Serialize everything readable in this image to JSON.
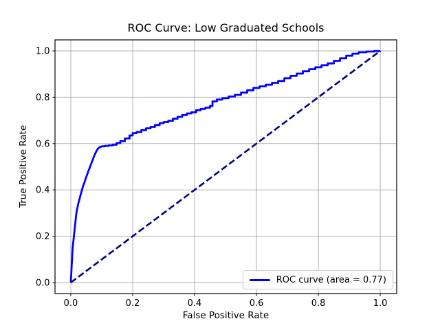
{
  "chart_data": {
    "type": "line",
    "title": "ROC Curve: Low Graduated Schools",
    "xlabel": "False Positive Rate",
    "ylabel": "True Positive Rate",
    "xlim": [
      -0.051,
      1.053
    ],
    "ylim": [
      -0.0475,
      1.0475
    ],
    "x_ticks": [
      0.0,
      0.2,
      0.4,
      0.6,
      0.8,
      1.0
    ],
    "y_ticks": [
      0.0,
      0.2,
      0.4,
      0.6,
      0.8,
      1.0
    ],
    "x_tick_labels": [
      "0.0",
      "0.2",
      "0.4",
      "0.6",
      "0.8",
      "1.0"
    ],
    "y_tick_labels": [
      "0.0",
      "0.2",
      "0.4",
      "0.6",
      "0.8",
      "1.0"
    ],
    "grid": true,
    "auc": 0.77,
    "legend": {
      "position": "lower right",
      "entries": [
        {
          "label": "ROC curve (area = 0.77)",
          "color": "#0000ff"
        }
      ]
    },
    "series": [
      {
        "name": "ROC curve (area = 0.77)",
        "id": "roc-curve-line",
        "color": "#0000ff",
        "linewidth": 2.8,
        "linestyle": "solid",
        "stepped": true,
        "points": [
          [
            0.0,
            0.0
          ],
          [
            0.001,
            0.025
          ],
          [
            0.002,
            0.05
          ],
          [
            0.003,
            0.075
          ],
          [
            0.004,
            0.1
          ],
          [
            0.005,
            0.125
          ],
          [
            0.006,
            0.15
          ],
          [
            0.008,
            0.175
          ],
          [
            0.01,
            0.2
          ],
          [
            0.012,
            0.225
          ],
          [
            0.014,
            0.25
          ],
          [
            0.016,
            0.275
          ],
          [
            0.018,
            0.3
          ],
          [
            0.021,
            0.32
          ],
          [
            0.024,
            0.34
          ],
          [
            0.028,
            0.36
          ],
          [
            0.032,
            0.38
          ],
          [
            0.036,
            0.4
          ],
          [
            0.04,
            0.418
          ],
          [
            0.044,
            0.432
          ],
          [
            0.048,
            0.448
          ],
          [
            0.052,
            0.463
          ],
          [
            0.056,
            0.478
          ],
          [
            0.06,
            0.492
          ],
          [
            0.064,
            0.506
          ],
          [
            0.068,
            0.52
          ],
          [
            0.072,
            0.534
          ],
          [
            0.076,
            0.548
          ],
          [
            0.08,
            0.56
          ],
          [
            0.084,
            0.57
          ],
          [
            0.088,
            0.578
          ],
          [
            0.093,
            0.584
          ],
          [
            0.1,
            0.588
          ],
          [
            0.11,
            0.59
          ],
          [
            0.122,
            0.592
          ],
          [
            0.135,
            0.595
          ],
          [
            0.148,
            0.602
          ],
          [
            0.16,
            0.61
          ],
          [
            0.175,
            0.622
          ],
          [
            0.19,
            0.635
          ],
          [
            0.2,
            0.645
          ],
          [
            0.213,
            0.65
          ],
          [
            0.228,
            0.658
          ],
          [
            0.243,
            0.666
          ],
          [
            0.258,
            0.672
          ],
          [
            0.272,
            0.68
          ],
          [
            0.287,
            0.688
          ],
          [
            0.3,
            0.693
          ],
          [
            0.315,
            0.698
          ],
          [
            0.33,
            0.707
          ],
          [
            0.345,
            0.715
          ],
          [
            0.36,
            0.723
          ],
          [
            0.375,
            0.73
          ],
          [
            0.39,
            0.735
          ],
          [
            0.405,
            0.744
          ],
          [
            0.42,
            0.75
          ],
          [
            0.435,
            0.755
          ],
          [
            0.45,
            0.762
          ],
          [
            0.458,
            0.782
          ],
          [
            0.472,
            0.79
          ],
          [
            0.49,
            0.796
          ],
          [
            0.51,
            0.803
          ],
          [
            0.53,
            0.81
          ],
          [
            0.55,
            0.82
          ],
          [
            0.57,
            0.83
          ],
          [
            0.59,
            0.84
          ],
          [
            0.61,
            0.847
          ],
          [
            0.63,
            0.854
          ],
          [
            0.65,
            0.862
          ],
          [
            0.67,
            0.87
          ],
          [
            0.69,
            0.882
          ],
          [
            0.71,
            0.892
          ],
          [
            0.73,
            0.902
          ],
          [
            0.75,
            0.912
          ],
          [
            0.77,
            0.921
          ],
          [
            0.79,
            0.929
          ],
          [
            0.81,
            0.938
          ],
          [
            0.83,
            0.946
          ],
          [
            0.85,
            0.957
          ],
          [
            0.87,
            0.968
          ],
          [
            0.89,
            0.979
          ],
          [
            0.91,
            0.988
          ],
          [
            0.93,
            0.994
          ],
          [
            0.955,
            0.997
          ],
          [
            0.98,
            0.999
          ],
          [
            1.0,
            1.0
          ]
        ]
      },
      {
        "name": "chance diagonal",
        "id": "chance-diagonal-line",
        "color": "#000080",
        "linewidth": 2.6,
        "linestyle": "dashed",
        "dash": [
          9.5,
          4.2
        ],
        "stepped": false,
        "points": [
          [
            0.0,
            0.0
          ],
          [
            1.0,
            1.0
          ]
        ]
      }
    ]
  },
  "colors": {
    "grid": "#b0b0b0",
    "spine": "#000000",
    "tick": "#000000",
    "legend_border": "#cccccc",
    "background": "#ffffff"
  }
}
